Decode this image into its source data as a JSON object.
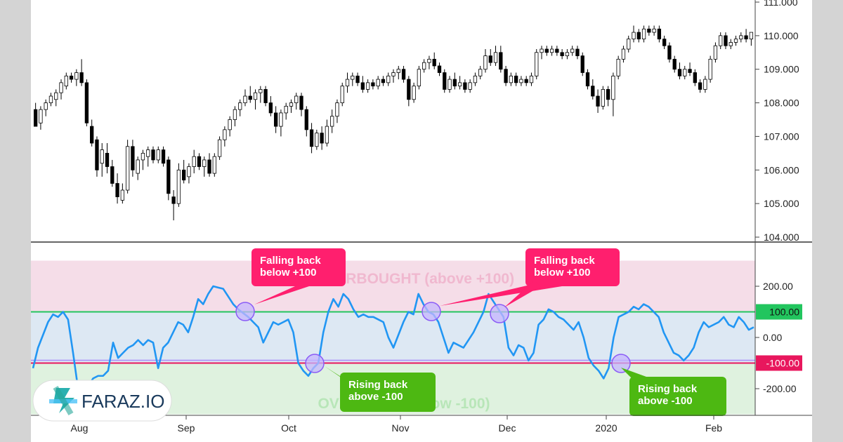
{
  "chart_data": [
    {
      "type": "candlestick",
      "title": "",
      "ylim": [
        104.0,
        111.0
      ],
      "y_ticks": [
        "104.000",
        "105.000",
        "106.000",
        "107.000",
        "108.000",
        "109.000",
        "110.000",
        "111.000"
      ],
      "x_ticks": [
        "Aug",
        "Sep",
        "Oct",
        "Nov",
        "Dec",
        "2020",
        "Feb"
      ],
      "grid": false,
      "candles": [
        {
          "o": 107.8,
          "h": 108.0,
          "l": 107.3,
          "c": 107.3
        },
        {
          "o": 107.4,
          "h": 107.9,
          "l": 107.2,
          "c": 107.8
        },
        {
          "o": 107.8,
          "h": 108.1,
          "l": 107.6,
          "c": 108.0
        },
        {
          "o": 108.0,
          "h": 108.3,
          "l": 107.9,
          "c": 108.2
        },
        {
          "o": 108.1,
          "h": 108.4,
          "l": 107.9,
          "c": 108.3
        },
        {
          "o": 108.3,
          "h": 108.7,
          "l": 108.1,
          "c": 108.6
        },
        {
          "o": 108.5,
          "h": 108.9,
          "l": 108.4,
          "c": 108.8
        },
        {
          "o": 108.8,
          "h": 108.9,
          "l": 108.6,
          "c": 108.7
        },
        {
          "o": 108.7,
          "h": 109.0,
          "l": 108.5,
          "c": 108.9
        },
        {
          "o": 108.9,
          "h": 109.3,
          "l": 108.5,
          "c": 108.6
        },
        {
          "o": 108.6,
          "h": 108.7,
          "l": 107.3,
          "c": 107.4
        },
        {
          "o": 107.3,
          "h": 107.5,
          "l": 106.7,
          "c": 106.8
        },
        {
          "o": 106.9,
          "h": 107.0,
          "l": 105.8,
          "c": 106.0
        },
        {
          "o": 106.2,
          "h": 106.8,
          "l": 105.8,
          "c": 106.6
        },
        {
          "o": 106.5,
          "h": 106.8,
          "l": 105.9,
          "c": 106.1
        },
        {
          "o": 106.1,
          "h": 106.3,
          "l": 105.5,
          "c": 105.6
        },
        {
          "o": 105.6,
          "h": 105.9,
          "l": 105.0,
          "c": 105.2
        },
        {
          "o": 105.1,
          "h": 105.6,
          "l": 105.0,
          "c": 105.4
        },
        {
          "o": 105.4,
          "h": 106.9,
          "l": 105.3,
          "c": 106.7
        },
        {
          "o": 106.7,
          "h": 106.9,
          "l": 105.8,
          "c": 106.0
        },
        {
          "o": 105.9,
          "h": 106.4,
          "l": 105.7,
          "c": 106.3
        },
        {
          "o": 106.3,
          "h": 106.6,
          "l": 106.0,
          "c": 106.5
        },
        {
          "o": 106.4,
          "h": 106.7,
          "l": 106.1,
          "c": 106.6
        },
        {
          "o": 106.6,
          "h": 106.7,
          "l": 106.2,
          "c": 106.3
        },
        {
          "o": 106.3,
          "h": 106.7,
          "l": 106.2,
          "c": 106.6
        },
        {
          "o": 106.6,
          "h": 106.7,
          "l": 106.1,
          "c": 106.2
        },
        {
          "o": 106.3,
          "h": 106.4,
          "l": 105.1,
          "c": 105.3
        },
        {
          "o": 105.2,
          "h": 105.4,
          "l": 104.5,
          "c": 105.0
        },
        {
          "o": 105.0,
          "h": 106.2,
          "l": 104.9,
          "c": 106.0
        },
        {
          "o": 106.0,
          "h": 106.3,
          "l": 105.6,
          "c": 105.7
        },
        {
          "o": 105.8,
          "h": 106.2,
          "l": 105.6,
          "c": 106.1
        },
        {
          "o": 106.1,
          "h": 106.6,
          "l": 105.9,
          "c": 106.4
        },
        {
          "o": 106.4,
          "h": 106.5,
          "l": 106.0,
          "c": 106.1
        },
        {
          "o": 106.1,
          "h": 106.4,
          "l": 105.8,
          "c": 106.3
        },
        {
          "o": 106.3,
          "h": 106.5,
          "l": 105.8,
          "c": 105.9
        },
        {
          "o": 105.9,
          "h": 106.5,
          "l": 105.8,
          "c": 106.4
        },
        {
          "o": 106.4,
          "h": 107.0,
          "l": 106.3,
          "c": 106.9
        },
        {
          "o": 106.9,
          "h": 107.3,
          "l": 106.7,
          "c": 107.2
        },
        {
          "o": 107.2,
          "h": 107.6,
          "l": 107.0,
          "c": 107.5
        },
        {
          "o": 107.5,
          "h": 107.9,
          "l": 107.3,
          "c": 107.8
        },
        {
          "o": 107.8,
          "h": 108.1,
          "l": 107.6,
          "c": 108.0
        },
        {
          "o": 108.0,
          "h": 108.4,
          "l": 107.9,
          "c": 108.2
        },
        {
          "o": 108.2,
          "h": 108.5,
          "l": 108.0,
          "c": 108.1
        },
        {
          "o": 108.1,
          "h": 108.4,
          "l": 107.8,
          "c": 108.3
        },
        {
          "o": 108.3,
          "h": 108.5,
          "l": 108.0,
          "c": 108.4
        },
        {
          "o": 108.4,
          "h": 108.5,
          "l": 107.9,
          "c": 108.0
        },
        {
          "o": 108.0,
          "h": 108.2,
          "l": 107.6,
          "c": 107.7
        },
        {
          "o": 107.7,
          "h": 107.9,
          "l": 107.1,
          "c": 107.3
        },
        {
          "o": 107.3,
          "h": 107.8,
          "l": 107.0,
          "c": 107.7
        },
        {
          "o": 107.7,
          "h": 108.0,
          "l": 107.5,
          "c": 107.9
        },
        {
          "o": 107.9,
          "h": 108.1,
          "l": 107.7,
          "c": 108.0
        },
        {
          "o": 108.0,
          "h": 108.3,
          "l": 107.8,
          "c": 108.2
        },
        {
          "o": 108.2,
          "h": 108.3,
          "l": 107.6,
          "c": 107.8
        },
        {
          "o": 107.8,
          "h": 107.9,
          "l": 107.0,
          "c": 107.2
        },
        {
          "o": 107.2,
          "h": 107.4,
          "l": 106.5,
          "c": 106.7
        },
        {
          "o": 106.7,
          "h": 107.2,
          "l": 106.6,
          "c": 107.1
        },
        {
          "o": 107.1,
          "h": 107.3,
          "l": 106.6,
          "c": 106.8
        },
        {
          "o": 106.8,
          "h": 107.5,
          "l": 106.7,
          "c": 107.3
        },
        {
          "o": 107.3,
          "h": 107.8,
          "l": 107.1,
          "c": 107.6
        },
        {
          "o": 107.6,
          "h": 108.1,
          "l": 107.4,
          "c": 108.0
        },
        {
          "o": 108.0,
          "h": 108.6,
          "l": 107.9,
          "c": 108.5
        },
        {
          "o": 108.5,
          "h": 108.9,
          "l": 108.3,
          "c": 108.7
        },
        {
          "o": 108.7,
          "h": 108.9,
          "l": 108.5,
          "c": 108.8
        },
        {
          "o": 108.8,
          "h": 108.9,
          "l": 108.5,
          "c": 108.6
        },
        {
          "o": 108.6,
          "h": 108.8,
          "l": 108.3,
          "c": 108.4
        },
        {
          "o": 108.4,
          "h": 108.7,
          "l": 108.3,
          "c": 108.6
        },
        {
          "o": 108.6,
          "h": 108.7,
          "l": 108.4,
          "c": 108.5
        },
        {
          "o": 108.5,
          "h": 108.8,
          "l": 108.4,
          "c": 108.7
        },
        {
          "o": 108.7,
          "h": 108.8,
          "l": 108.5,
          "c": 108.6
        },
        {
          "o": 108.6,
          "h": 108.9,
          "l": 108.5,
          "c": 108.8
        },
        {
          "o": 108.8,
          "h": 109.0,
          "l": 108.6,
          "c": 108.9
        },
        {
          "o": 108.9,
          "h": 109.1,
          "l": 108.7,
          "c": 109.0
        },
        {
          "o": 109.0,
          "h": 109.1,
          "l": 108.6,
          "c": 108.7
        },
        {
          "o": 108.7,
          "h": 108.8,
          "l": 107.9,
          "c": 108.1
        },
        {
          "o": 108.1,
          "h": 108.6,
          "l": 108.0,
          "c": 108.5
        },
        {
          "o": 108.5,
          "h": 109.1,
          "l": 108.4,
          "c": 109.0
        },
        {
          "o": 109.0,
          "h": 109.3,
          "l": 108.9,
          "c": 109.2
        },
        {
          "o": 109.2,
          "h": 109.4,
          "l": 109.0,
          "c": 109.3
        },
        {
          "o": 109.3,
          "h": 109.5,
          "l": 109.0,
          "c": 109.1
        },
        {
          "o": 109.1,
          "h": 109.2,
          "l": 108.8,
          "c": 108.9
        },
        {
          "o": 108.9,
          "h": 109.0,
          "l": 108.3,
          "c": 108.4
        },
        {
          "o": 108.4,
          "h": 108.8,
          "l": 108.3,
          "c": 108.7
        },
        {
          "o": 108.7,
          "h": 108.9,
          "l": 108.4,
          "c": 108.5
        },
        {
          "o": 108.5,
          "h": 108.8,
          "l": 108.4,
          "c": 108.6
        },
        {
          "o": 108.6,
          "h": 108.7,
          "l": 108.3,
          "c": 108.4
        },
        {
          "o": 108.4,
          "h": 108.7,
          "l": 108.3,
          "c": 108.6
        },
        {
          "o": 108.6,
          "h": 108.9,
          "l": 108.5,
          "c": 108.8
        },
        {
          "o": 108.8,
          "h": 109.1,
          "l": 108.7,
          "c": 109.0
        },
        {
          "o": 109.0,
          "h": 109.6,
          "l": 108.9,
          "c": 109.4
        },
        {
          "o": 109.4,
          "h": 109.6,
          "l": 109.1,
          "c": 109.2
        },
        {
          "o": 109.2,
          "h": 109.7,
          "l": 109.1,
          "c": 109.5
        },
        {
          "o": 109.5,
          "h": 109.7,
          "l": 108.9,
          "c": 109.0
        },
        {
          "o": 109.0,
          "h": 109.1,
          "l": 108.5,
          "c": 108.6
        },
        {
          "o": 108.6,
          "h": 108.9,
          "l": 108.5,
          "c": 108.8
        },
        {
          "o": 108.8,
          "h": 108.9,
          "l": 108.5,
          "c": 108.6
        },
        {
          "o": 108.6,
          "h": 108.8,
          "l": 108.5,
          "c": 108.7
        },
        {
          "o": 108.7,
          "h": 108.8,
          "l": 108.5,
          "c": 108.6
        },
        {
          "o": 108.6,
          "h": 108.9,
          "l": 108.5,
          "c": 108.8
        },
        {
          "o": 108.8,
          "h": 109.6,
          "l": 108.7,
          "c": 109.5
        },
        {
          "o": 109.5,
          "h": 109.7,
          "l": 109.3,
          "c": 109.6
        },
        {
          "o": 109.6,
          "h": 109.7,
          "l": 109.4,
          "c": 109.5
        },
        {
          "o": 109.5,
          "h": 109.7,
          "l": 109.4,
          "c": 109.6
        },
        {
          "o": 109.6,
          "h": 109.7,
          "l": 109.4,
          "c": 109.5
        },
        {
          "o": 109.5,
          "h": 109.6,
          "l": 109.3,
          "c": 109.4
        },
        {
          "o": 109.4,
          "h": 109.6,
          "l": 109.3,
          "c": 109.5
        },
        {
          "o": 109.5,
          "h": 109.7,
          "l": 109.4,
          "c": 109.6
        },
        {
          "o": 109.6,
          "h": 109.7,
          "l": 109.3,
          "c": 109.4
        },
        {
          "o": 109.4,
          "h": 109.5,
          "l": 108.8,
          "c": 108.9
        },
        {
          "o": 108.9,
          "h": 109.0,
          "l": 108.4,
          "c": 108.5
        },
        {
          "o": 108.5,
          "h": 108.7,
          "l": 108.1,
          "c": 108.2
        },
        {
          "o": 108.2,
          "h": 108.4,
          "l": 107.7,
          "c": 107.9
        },
        {
          "o": 107.9,
          "h": 108.5,
          "l": 107.8,
          "c": 108.4
        },
        {
          "o": 108.4,
          "h": 108.5,
          "l": 107.9,
          "c": 108.1
        },
        {
          "o": 108.1,
          "h": 108.9,
          "l": 107.6,
          "c": 108.8
        },
        {
          "o": 108.8,
          "h": 109.4,
          "l": 108.7,
          "c": 109.3
        },
        {
          "o": 109.3,
          "h": 109.7,
          "l": 109.2,
          "c": 109.6
        },
        {
          "o": 109.6,
          "h": 110.0,
          "l": 109.5,
          "c": 109.9
        },
        {
          "o": 109.9,
          "h": 110.3,
          "l": 109.8,
          "c": 110.1
        },
        {
          "o": 110.1,
          "h": 110.2,
          "l": 109.8,
          "c": 109.9
        },
        {
          "o": 109.9,
          "h": 110.3,
          "l": 109.8,
          "c": 110.2
        },
        {
          "o": 110.2,
          "h": 110.3,
          "l": 110.0,
          "c": 110.1
        },
        {
          "o": 110.1,
          "h": 110.3,
          "l": 110.0,
          "c": 110.2
        },
        {
          "o": 110.2,
          "h": 110.3,
          "l": 109.8,
          "c": 109.9
        },
        {
          "o": 109.9,
          "h": 110.0,
          "l": 109.6,
          "c": 109.7
        },
        {
          "o": 109.7,
          "h": 109.8,
          "l": 109.2,
          "c": 109.3
        },
        {
          "o": 109.3,
          "h": 109.4,
          "l": 108.9,
          "c": 109.0
        },
        {
          "o": 109.0,
          "h": 109.2,
          "l": 108.7,
          "c": 108.8
        },
        {
          "o": 108.8,
          "h": 109.1,
          "l": 108.7,
          "c": 109.0
        },
        {
          "o": 109.0,
          "h": 109.2,
          "l": 108.8,
          "c": 108.9
        },
        {
          "o": 108.9,
          "h": 109.0,
          "l": 108.5,
          "c": 108.6
        },
        {
          "o": 108.6,
          "h": 108.7,
          "l": 108.3,
          "c": 108.4
        },
        {
          "o": 108.4,
          "h": 108.8,
          "l": 108.3,
          "c": 108.7
        },
        {
          "o": 108.7,
          "h": 109.4,
          "l": 108.6,
          "c": 109.3
        },
        {
          "o": 109.3,
          "h": 109.8,
          "l": 109.2,
          "c": 109.7
        },
        {
          "o": 109.7,
          "h": 110.1,
          "l": 109.6,
          "c": 110.0
        },
        {
          "o": 110.0,
          "h": 110.1,
          "l": 109.6,
          "c": 109.7
        },
        {
          "o": 109.7,
          "h": 109.9,
          "l": 109.6,
          "c": 109.8
        },
        {
          "o": 109.8,
          "h": 110.0,
          "l": 109.7,
          "c": 109.9
        },
        {
          "o": 109.9,
          "h": 110.1,
          "l": 109.8,
          "c": 110.0
        },
        {
          "o": 110.0,
          "h": 110.2,
          "l": 109.8,
          "c": 109.9
        },
        {
          "o": 109.9,
          "h": 110.1,
          "l": 109.7,
          "c": 110.1
        }
      ]
    },
    {
      "type": "line",
      "title": "",
      "ylim": [
        -300,
        300
      ],
      "y_ticks": [
        "-200.00",
        "0.00",
        "200.00"
      ],
      "levels": [
        {
          "label": "100.00",
          "value": 100,
          "color": "#22c55e"
        },
        {
          "label": "-100.00",
          "value": -100,
          "color": "#e8175d"
        }
      ],
      "zones": [
        {
          "label": "OVERBOUGHT (above  +100)",
          "from": 100,
          "to": 300,
          "color": "#f5dde8"
        },
        {
          "label": "",
          "from": -100,
          "to": 100,
          "color": "#dde8f3"
        },
        {
          "label": "OVERSOLD (below -100)",
          "from": -300,
          "to": -100,
          "color": "#dff2df"
        }
      ],
      "series": [
        {
          "name": "",
          "color": "#2196f3",
          "values": [
            -120,
            -40,
            10,
            60,
            90,
            80,
            100,
            70,
            -60,
            -200,
            -230,
            -190,
            -160,
            -150,
            -150,
            -130,
            -20,
            -80,
            -60,
            -40,
            -30,
            -10,
            -30,
            -10,
            -20,
            -120,
            -40,
            -20,
            20,
            60,
            50,
            20,
            80,
            150,
            130,
            170,
            200,
            195,
            190,
            160,
            130,
            110,
            95,
            80,
            60,
            40,
            -20,
            20,
            60,
            50,
            60,
            70,
            20,
            -100,
            -130,
            -150,
            -120,
            -100,
            20,
            100,
            150,
            120,
            170,
            150,
            110,
            80,
            90,
            80,
            80,
            70,
            60,
            0,
            -40,
            10,
            60,
            100,
            90,
            170,
            130,
            100,
            90,
            60,
            0,
            -60,
            -20,
            -30,
            -40,
            -10,
            20,
            60,
            100,
            170,
            140,
            110,
            80,
            -40,
            -70,
            -30,
            -40,
            -90,
            -60,
            50,
            70,
            110,
            100,
            80,
            70,
            50,
            30,
            60,
            0,
            -80,
            -110,
            -130,
            -160,
            -120,
            0,
            80,
            90,
            100,
            120,
            110,
            130,
            120,
            100,
            80,
            20,
            -20,
            -60,
            -70,
            -90,
            -70,
            -40,
            20,
            60,
            40,
            50,
            60,
            80,
            50,
            40,
            80,
            60,
            30,
            40
          ]
        }
      ],
      "annotations": [
        {
          "text": "Falling back\nbelow +100",
          "color": "#ff1f6e"
        },
        {
          "text": "Falling back\nbelow +100",
          "color": "#ff1f6e"
        },
        {
          "text": "Rising back\nabove -100",
          "color": "#4db812"
        },
        {
          "text": "Rising back\nabove -100",
          "color": "#4db812"
        }
      ]
    }
  ],
  "x_axis": {
    "labels": [
      "Aug",
      "Sep",
      "Oct",
      "Nov",
      "Dec",
      "2020",
      "Feb"
    ]
  },
  "logo": {
    "text": "FARAZ.IO"
  },
  "colors": {
    "up": "#ffffff",
    "down": "#000000",
    "line": "#2196f3",
    "logo": "#2ab0b0"
  }
}
